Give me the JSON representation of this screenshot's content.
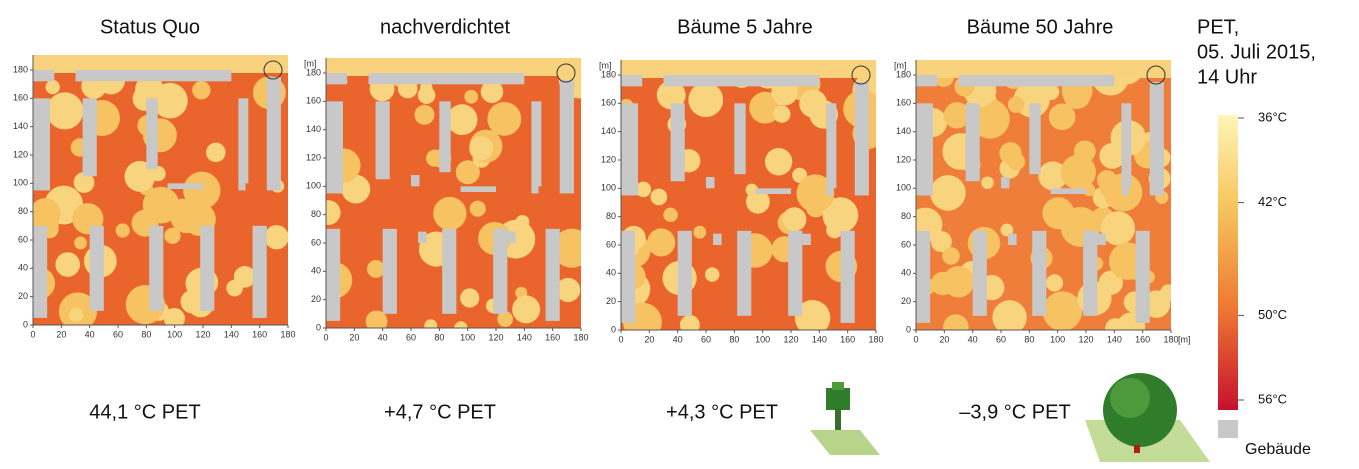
{
  "panels": [
    {
      "title": "Status Quo",
      "result": "44,1 °C PET"
    },
    {
      "title": "nachverdichtet",
      "result": "+4,7 °C PET"
    },
    {
      "title": "Bäume 5 Jahre",
      "result": "+4,3 °C PET"
    },
    {
      "title": "Bäume 50 Jahre",
      "result": "–3,9 °C PET"
    }
  ],
  "xticks": [
    0,
    20,
    40,
    60,
    80,
    100,
    120,
    140,
    160,
    180
  ],
  "yticks": [
    0,
    20,
    40,
    60,
    80,
    100,
    120,
    140,
    160,
    180
  ],
  "unit": "[m]",
  "legend": {
    "title": [
      "PET,",
      "05. Juli 2015,",
      "14 Uhr"
    ],
    "lim": [
      36,
      56
    ],
    "scale": [
      {
        "value": 36,
        "label": "36°C"
      },
      {
        "value": 42,
        "label": "42°C"
      },
      {
        "value": 50,
        "label": "50°C"
      },
      {
        "value": 56,
        "label": "56°C"
      }
    ],
    "building": "Gebäude"
  }
}
